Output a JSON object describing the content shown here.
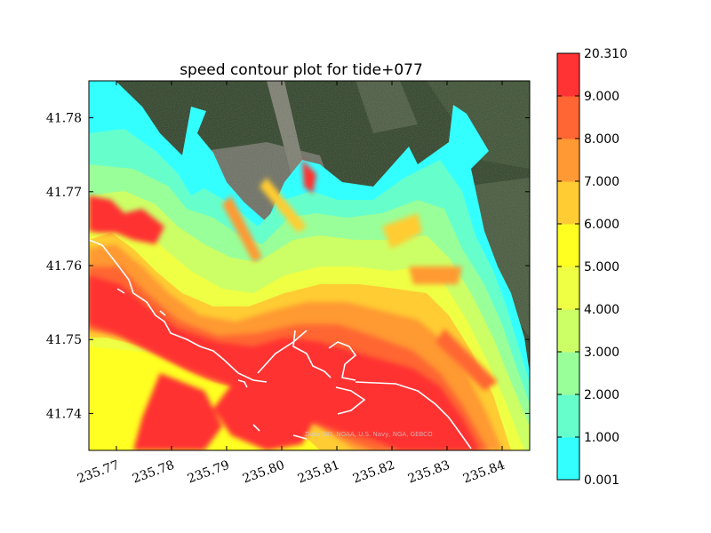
{
  "chart_data": {
    "type": "heatmap",
    "title": "speed contour plot for tide+077",
    "xlabel": "",
    "ylabel": "",
    "xlim": [
      235.765,
      235.845
    ],
    "ylim": [
      41.735,
      41.785
    ],
    "x_ticks": [
      235.77,
      235.78,
      235.79,
      235.8,
      235.81,
      235.82,
      235.83,
      235.84
    ],
    "x_tick_labels": [
      "235.77",
      "235.78",
      "235.79",
      "235.80",
      "235.81",
      "235.82",
      "235.83",
      "235.84"
    ],
    "y_ticks": [
      41.74,
      41.75,
      41.76,
      41.77,
      41.78
    ],
    "y_tick_labels": [
      "41.74",
      "41.75",
      "41.76",
      "41.77",
      "41.78"
    ],
    "colorbar": {
      "levels": [
        0.001,
        1.0,
        2.0,
        3.0,
        4.0,
        5.0,
        6.0,
        7.0,
        8.0,
        9.0,
        20.31
      ],
      "level_labels": [
        "0.001",
        "1.000",
        "2.000",
        "3.000",
        "4.000",
        "5.000",
        "6.000",
        "7.000",
        "8.000",
        "9.000",
        "20.310"
      ],
      "colors": [
        "#33ffff",
        "#66ffcc",
        "#99ff99",
        "#ccff66",
        "#eeff44",
        "#ffff22",
        "#ffcc33",
        "#ff9933",
        "#ff6633",
        "#ff3333"
      ]
    },
    "background": "satellite imagery (dark green forest, grey town grid)",
    "coastline_color": "#ffffff",
    "attribution": "Data SIO, NOAA, U.S. Navy, NGA, GEBCO",
    "grid": false
  }
}
